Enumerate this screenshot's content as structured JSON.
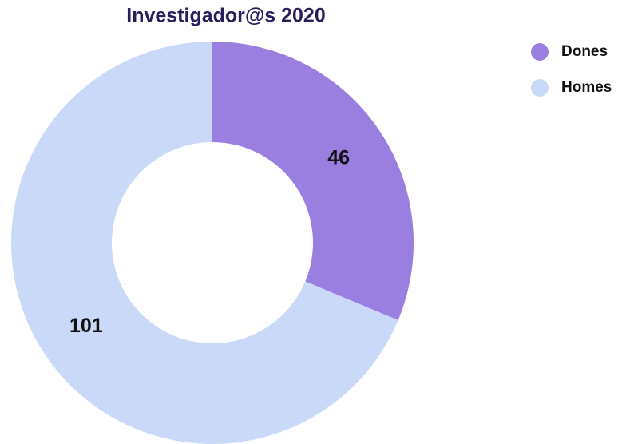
{
  "chart_data": {
    "type": "pie",
    "title": "Investigador@s 2020",
    "categories": [
      "Dones",
      "Homes"
    ],
    "values": [
      46,
      101
    ],
    "colors": [
      "#9b7fe0",
      "#c9d9f7"
    ],
    "legend": "top-right"
  }
}
